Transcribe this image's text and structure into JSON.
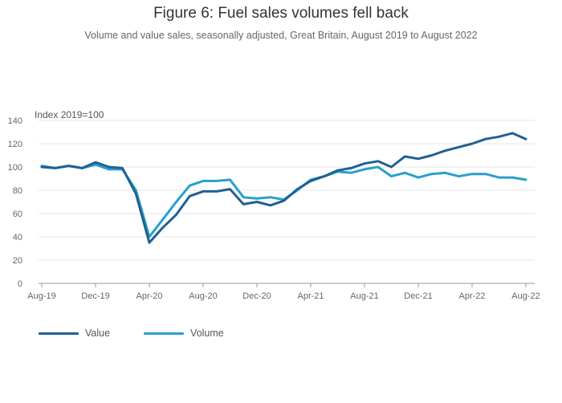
{
  "title": "Figure 6: Fuel sales volumes fell back",
  "subtitle": "Volume and value sales, seasonally adjusted, Great Britain, August 2019 to August 2022",
  "colors": {
    "value": "#206095",
    "volume": "#27a0cc",
    "grid": "#e6e6e6",
    "axis": "#999999"
  },
  "chart_data": {
    "type": "line",
    "title": "Figure 6: Fuel sales volumes fell back",
    "ylabel": "Index 2019=100",
    "xlabel": "",
    "ylim": [
      0,
      140
    ],
    "yticks": [
      0,
      20,
      40,
      60,
      80,
      100,
      120,
      140
    ],
    "x": [
      "Aug-19",
      "Sep-19",
      "Oct-19",
      "Nov-19",
      "Dec-19",
      "Jan-20",
      "Feb-20",
      "Mar-20",
      "Apr-20",
      "May-20",
      "Jun-20",
      "Jul-20",
      "Aug-20",
      "Sep-20",
      "Oct-20",
      "Nov-20",
      "Dec-20",
      "Jan-21",
      "Feb-21",
      "Mar-21",
      "Apr-21",
      "May-21",
      "Jun-21",
      "Jul-21",
      "Aug-21",
      "Sep-21",
      "Oct-21",
      "Nov-21",
      "Dec-21",
      "Jan-22",
      "Feb-22",
      "Mar-22",
      "Apr-22",
      "May-22",
      "Jun-22",
      "Jul-22",
      "Aug-22"
    ],
    "xticks": [
      "Aug-19",
      "Dec-19",
      "Apr-20",
      "Aug-20",
      "Dec-20",
      "Apr-21",
      "Aug-21",
      "Dec-21",
      "Apr-22",
      "Aug-22"
    ],
    "series": [
      {
        "name": "Value",
        "values": [
          100,
          99,
          101,
          99,
          104,
          100,
          99,
          77,
          35,
          48,
          59,
          75,
          79,
          79,
          81,
          68,
          70,
          67,
          71,
          81,
          88,
          92,
          97,
          99,
          103,
          105,
          100,
          109,
          107,
          110,
          114,
          117,
          120,
          124,
          126,
          129,
          124
        ]
      },
      {
        "name": "Volume",
        "values": [
          101,
          99,
          101,
          99,
          102,
          98,
          98,
          80,
          40,
          55,
          70,
          84,
          88,
          88,
          89,
          74,
          73,
          74,
          72,
          80,
          89,
          92,
          96,
          95,
          98,
          100,
          92,
          95,
          91,
          94,
          95,
          92,
          94,
          94,
          91,
          91,
          89
        ]
      }
    ],
    "legend": [
      "Value",
      "Volume"
    ],
    "legend_position": "bottom-left",
    "grid": true
  }
}
